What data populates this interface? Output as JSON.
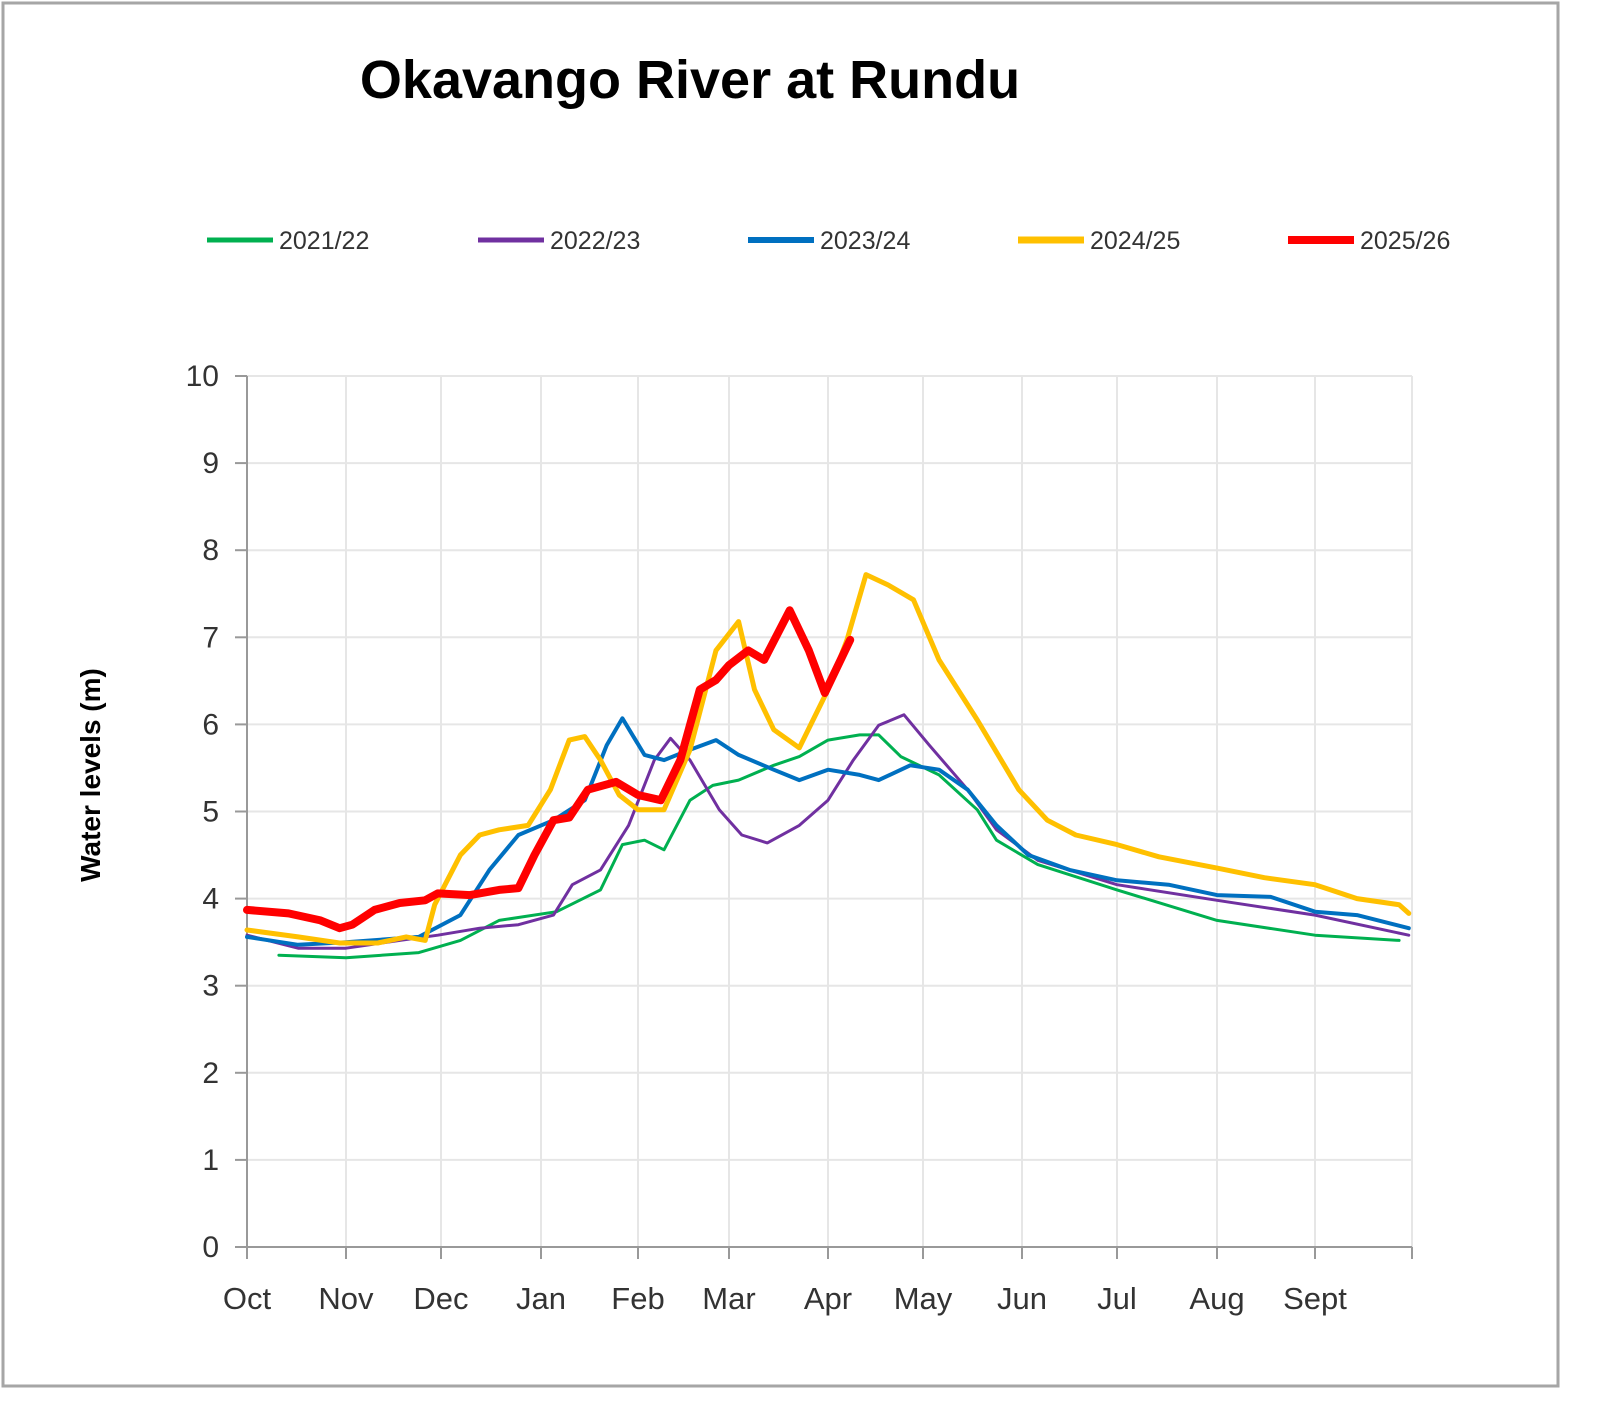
{
  "chart_data": {
    "type": "line",
    "title": "Okavango River at Rundu",
    "xlabel": "",
    "ylabel": "Water levels (m)",
    "ylim": [
      0,
      10
    ],
    "yticks": [
      "0",
      "1",
      "2",
      "3",
      "4",
      "5",
      "6",
      "7",
      "8",
      "9",
      "10"
    ],
    "xticks": [
      "Oct",
      "Nov",
      "Dec",
      "Jan",
      "Feb",
      "Mar",
      "Apr",
      "May",
      "Jun",
      "Jul",
      "Aug",
      "Sept"
    ],
    "grid": true,
    "legend_position": "top",
    "series": [
      {
        "name": "2021/22",
        "color": "#00b050",
        "width": 3,
        "points": [
          [
            "10-11",
            3.35
          ],
          [
            "11-01",
            3.32
          ],
          [
            "11-24",
            3.38
          ],
          [
            "12-07",
            3.52
          ],
          [
            "12-19",
            3.75
          ],
          [
            "01-06",
            3.85
          ],
          [
            "01-20",
            4.1
          ],
          [
            "01-27",
            4.62
          ],
          [
            "02-03",
            4.67
          ],
          [
            "02-09",
            4.56
          ],
          [
            "02-17",
            5.13
          ],
          [
            "02-24",
            5.3
          ],
          [
            "03-04",
            5.36
          ],
          [
            "03-15",
            5.53
          ],
          [
            "03-23",
            5.63
          ],
          [
            "04-01",
            5.82
          ],
          [
            "04-11",
            5.88
          ],
          [
            "04-17",
            5.88
          ],
          [
            "04-24",
            5.63
          ],
          [
            "05-06",
            5.42
          ],
          [
            "05-18",
            5.02
          ],
          [
            "05-24",
            4.67
          ],
          [
            "06-06",
            4.39
          ],
          [
            "07-01",
            4.1
          ],
          [
            "08-01",
            3.75
          ],
          [
            "09-01",
            3.58
          ],
          [
            "09-27",
            3.52
          ]
        ]
      },
      {
        "name": "2022/23",
        "color": "#7030a0",
        "width": 3,
        "points": [
          [
            "10-01",
            3.58
          ],
          [
            "10-17",
            3.43
          ],
          [
            "11-01",
            3.43
          ],
          [
            "11-18",
            3.52
          ],
          [
            "11-30",
            3.58
          ],
          [
            "12-13",
            3.66
          ],
          [
            "12-25",
            3.7
          ],
          [
            "01-05",
            3.81
          ],
          [
            "01-11",
            4.16
          ],
          [
            "01-20",
            4.33
          ],
          [
            "01-29",
            4.84
          ],
          [
            "02-06",
            5.59
          ],
          [
            "02-11",
            5.84
          ],
          [
            "02-17",
            5.59
          ],
          [
            "02-26",
            5.02
          ],
          [
            "03-05",
            4.73
          ],
          [
            "03-13",
            4.64
          ],
          [
            "03-23",
            4.84
          ],
          [
            "04-01",
            5.13
          ],
          [
            "04-09",
            5.59
          ],
          [
            "04-17",
            5.99
          ],
          [
            "04-25",
            6.11
          ],
          [
            "05-03",
            5.76
          ],
          [
            "05-15",
            5.25
          ],
          [
            "05-24",
            4.79
          ],
          [
            "06-06",
            4.44
          ],
          [
            "07-01",
            4.16
          ],
          [
            "08-01",
            3.98
          ],
          [
            "09-01",
            3.81
          ],
          [
            "09-30",
            3.58
          ]
        ]
      },
      {
        "name": "2023/24",
        "color": "#0070c0",
        "width": 4,
        "points": [
          [
            "10-01",
            3.56
          ],
          [
            "10-17",
            3.47
          ],
          [
            "11-01",
            3.5
          ],
          [
            "11-24",
            3.56
          ],
          [
            "12-07",
            3.81
          ],
          [
            "12-16",
            4.33
          ],
          [
            "12-25",
            4.73
          ],
          [
            "01-05",
            4.9
          ],
          [
            "01-15",
            5.13
          ],
          [
            "01-22",
            5.76
          ],
          [
            "01-27",
            6.07
          ],
          [
            "02-03",
            5.65
          ],
          [
            "02-09",
            5.59
          ],
          [
            "02-17",
            5.71
          ],
          [
            "02-25",
            5.82
          ],
          [
            "03-04",
            5.65
          ],
          [
            "03-15",
            5.48
          ],
          [
            "03-23",
            5.36
          ],
          [
            "04-01",
            5.48
          ],
          [
            "04-11",
            5.42
          ],
          [
            "04-17",
            5.36
          ],
          [
            "04-27",
            5.53
          ],
          [
            "05-06",
            5.48
          ],
          [
            "05-15",
            5.25
          ],
          [
            "05-24",
            4.84
          ],
          [
            "06-03",
            4.5
          ],
          [
            "06-16",
            4.33
          ],
          [
            "07-01",
            4.21
          ],
          [
            "07-17",
            4.16
          ],
          [
            "08-01",
            4.04
          ],
          [
            "08-18",
            4.02
          ],
          [
            "09-01",
            3.85
          ],
          [
            "09-14",
            3.81
          ],
          [
            "09-30",
            3.66
          ]
        ]
      },
      {
        "name": "2024/25",
        "color": "#ffc000",
        "width": 5,
        "points": [
          [
            "10-01",
            3.64
          ],
          [
            "10-17",
            3.56
          ],
          [
            "10-30",
            3.49
          ],
          [
            "11-11",
            3.49
          ],
          [
            "11-20",
            3.56
          ],
          [
            "11-26",
            3.52
          ],
          [
            "11-29",
            3.93
          ],
          [
            "12-07",
            4.5
          ],
          [
            "12-13",
            4.73
          ],
          [
            "12-19",
            4.79
          ],
          [
            "12-28",
            4.84
          ],
          [
            "01-04",
            5.25
          ],
          [
            "01-10",
            5.82
          ],
          [
            "01-15",
            5.86
          ],
          [
            "01-20",
            5.59
          ],
          [
            "01-26",
            5.19
          ],
          [
            "02-01",
            5.02
          ],
          [
            "02-09",
            5.02
          ],
          [
            "02-17",
            5.71
          ],
          [
            "02-25",
            6.85
          ],
          [
            "03-04",
            7.18
          ],
          [
            "03-09",
            6.4
          ],
          [
            "03-15",
            5.94
          ],
          [
            "03-23",
            5.73
          ],
          [
            "04-01",
            6.4
          ],
          [
            "04-07",
            6.97
          ],
          [
            "04-13",
            7.72
          ],
          [
            "04-20",
            7.6
          ],
          [
            "04-28",
            7.43
          ],
          [
            "05-06",
            6.74
          ],
          [
            "05-18",
            6.05
          ],
          [
            "05-31",
            5.25
          ],
          [
            "06-09",
            4.9
          ],
          [
            "06-18",
            4.73
          ],
          [
            "07-01",
            4.62
          ],
          [
            "07-14",
            4.48
          ],
          [
            "08-01",
            4.35
          ],
          [
            "08-16",
            4.24
          ],
          [
            "09-01",
            4.16
          ],
          [
            "09-14",
            4.0
          ],
          [
            "09-27",
            3.93
          ],
          [
            "09-30",
            3.83
          ]
        ]
      },
      {
        "name": "2025/26",
        "color": "#ff0000",
        "width": 8,
        "points": [
          [
            "10-01",
            3.87
          ],
          [
            "10-14",
            3.83
          ],
          [
            "10-24",
            3.75
          ],
          [
            "10-30",
            3.66
          ],
          [
            "11-03",
            3.7
          ],
          [
            "11-10",
            3.87
          ],
          [
            "11-18",
            3.95
          ],
          [
            "11-26",
            3.98
          ],
          [
            "11-30",
            4.06
          ],
          [
            "12-10",
            4.04
          ],
          [
            "12-19",
            4.1
          ],
          [
            "12-25",
            4.12
          ],
          [
            "12-30",
            4.5
          ],
          [
            "01-05",
            4.9
          ],
          [
            "01-10",
            4.93
          ],
          [
            "01-16",
            5.25
          ],
          [
            "01-25",
            5.34
          ],
          [
            "02-01",
            5.19
          ],
          [
            "02-08",
            5.13
          ],
          [
            "02-14",
            5.59
          ],
          [
            "02-20",
            6.4
          ],
          [
            "02-25",
            6.51
          ],
          [
            "03-01",
            6.68
          ],
          [
            "03-07",
            6.85
          ],
          [
            "03-12",
            6.74
          ],
          [
            "03-20",
            7.31
          ],
          [
            "03-26",
            6.85
          ],
          [
            "03-31",
            6.36
          ],
          [
            "04-08",
            6.97
          ]
        ]
      }
    ]
  }
}
